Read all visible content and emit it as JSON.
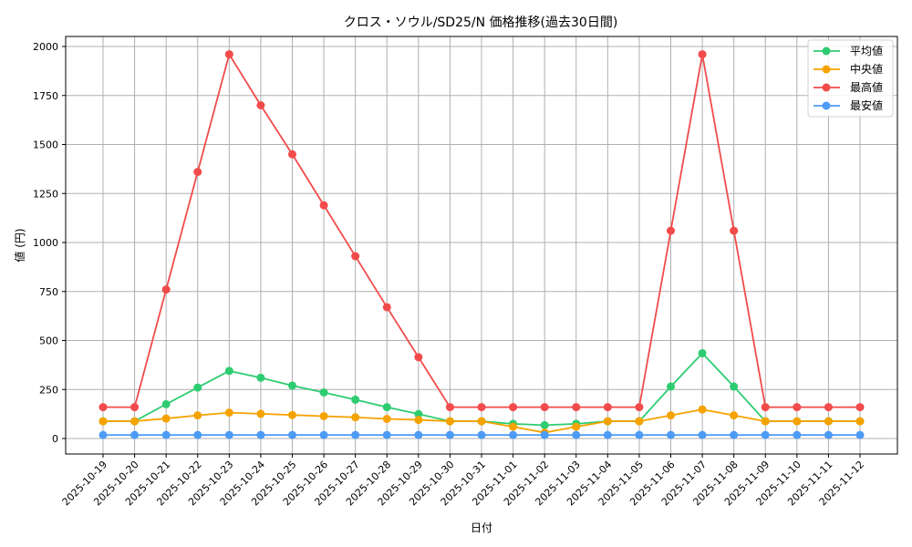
{
  "chart_data": {
    "type": "line",
    "title": "クロス・ソウル/SD25/N 価格推移(過去30日間)",
    "xlabel": "日付",
    "ylabel": "値 (円)",
    "ylim": [
      -75,
      2075
    ],
    "yticks": [
      0,
      250,
      500,
      750,
      1000,
      1250,
      1500,
      1750,
      2000
    ],
    "grid": true,
    "legend_position": "upper right",
    "categories": [
      "2025-10-19",
      "2025-10-20",
      "2025-10-21",
      "2025-10-22",
      "2025-10-23",
      "2025-10-24",
      "2025-10-25",
      "2025-10-26",
      "2025-10-27",
      "2025-10-28",
      "2025-10-29",
      "2025-10-30",
      "2025-10-31",
      "2025-11-01",
      "2025-11-02",
      "2025-11-03",
      "2025-11-04",
      "2025-11-05",
      "2025-11-06",
      "2025-11-07",
      "2025-11-08",
      "2025-11-09",
      "2025-11-10",
      "2025-11-11",
      "2025-11-12"
    ],
    "series": [
      {
        "name": "平均値",
        "color": "#2ecc71",
        "values": [
          88,
          88,
          175,
          260,
          345,
          310,
          270,
          235,
          198,
          160,
          125,
          88,
          88,
          75,
          68,
          75,
          88,
          88,
          265,
          435,
          265,
          88,
          88,
          88,
          88
        ]
      },
      {
        "name": "中央値",
        "color": "#f5a300",
        "values": [
          88,
          88,
          102,
          118,
          132,
          126,
          120,
          114,
          108,
          100,
          95,
          88,
          88,
          60,
          30,
          60,
          88,
          88,
          118,
          148,
          118,
          88,
          88,
          88,
          88
        ]
      },
      {
        "name": "最高値",
        "color": "#f24b4b",
        "values": [
          160,
          160,
          760,
          1360,
          1960,
          1700,
          1450,
          1190,
          930,
          670,
          415,
          160,
          160,
          160,
          160,
          160,
          160,
          160,
          1060,
          1960,
          1060,
          160,
          160,
          160,
          160
        ]
      },
      {
        "name": "最安値",
        "color": "#4d9bf5",
        "values": [
          18,
          18,
          18,
          18,
          18,
          18,
          18,
          18,
          18,
          18,
          18,
          18,
          18,
          18,
          18,
          18,
          18,
          18,
          18,
          18,
          18,
          18,
          18,
          18,
          18
        ]
      }
    ]
  }
}
